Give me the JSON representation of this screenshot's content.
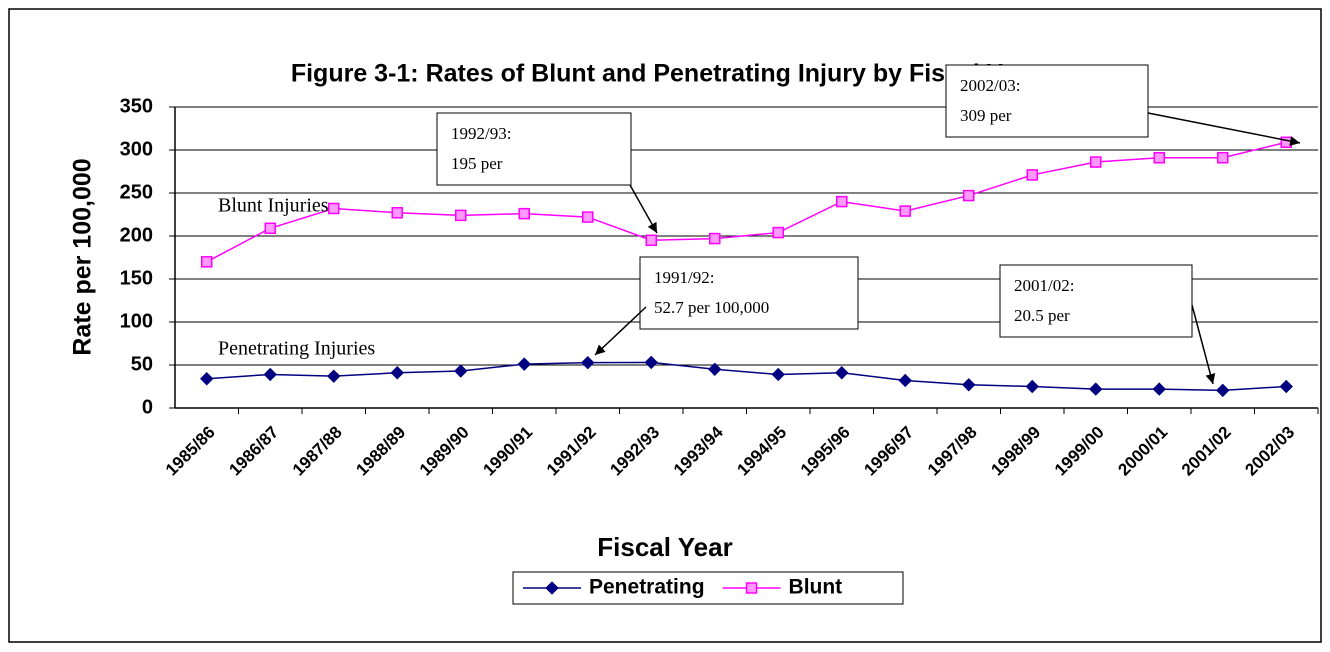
{
  "chart_data": {
    "type": "line",
    "title": "Figure 3-1: Rates of Blunt and Penetrating Injury by Fiscal Year",
    "x_label": "Fiscal Year",
    "y_label": "Rate per 100,000",
    "categories": [
      "1985/86",
      "1986/87",
      "1987/88",
      "1988/89",
      "1989/90",
      "1990/91",
      "1991/92",
      "1992/93",
      "1993/94",
      "1994/95",
      "1995/96",
      "1996/97",
      "1997/98",
      "1998/99",
      "1999/00",
      "2000/01",
      "2001/02",
      "2002/03"
    ],
    "series": [
      {
        "name": "Penetrating",
        "color": "#000080",
        "marker": "diamond",
        "values": [
          34,
          39,
          37,
          41,
          43,
          51,
          52.7,
          53,
          45,
          39,
          41,
          32,
          27,
          25,
          22,
          22,
          20.5,
          25
        ]
      },
      {
        "name": "Blunt",
        "color": "#ff00ff",
        "marker": "square",
        "values": [
          170,
          209,
          232,
          227,
          224,
          226,
          222,
          195,
          197,
          204,
          240,
          229,
          247,
          271,
          286,
          291,
          291,
          309
        ]
      }
    ],
    "ylim": [
      0,
      350
    ],
    "yticks": [
      0,
      50,
      100,
      150,
      200,
      250,
      300,
      350
    ],
    "grid": true,
    "legend": "bottom",
    "series_labels": [
      "Penetrating Injuries",
      "Blunt Injuries"
    ],
    "annotations": [
      {
        "lines": [
          "1992/93:",
          "195 per"
        ]
      },
      {
        "lines": [
          "2002/03:",
          "309 per"
        ]
      },
      {
        "lines": [
          "1991/92:",
          "52.7 per 100,000"
        ]
      },
      {
        "lines": [
          "2001/02:",
          "20.5 per"
        ]
      }
    ]
  }
}
